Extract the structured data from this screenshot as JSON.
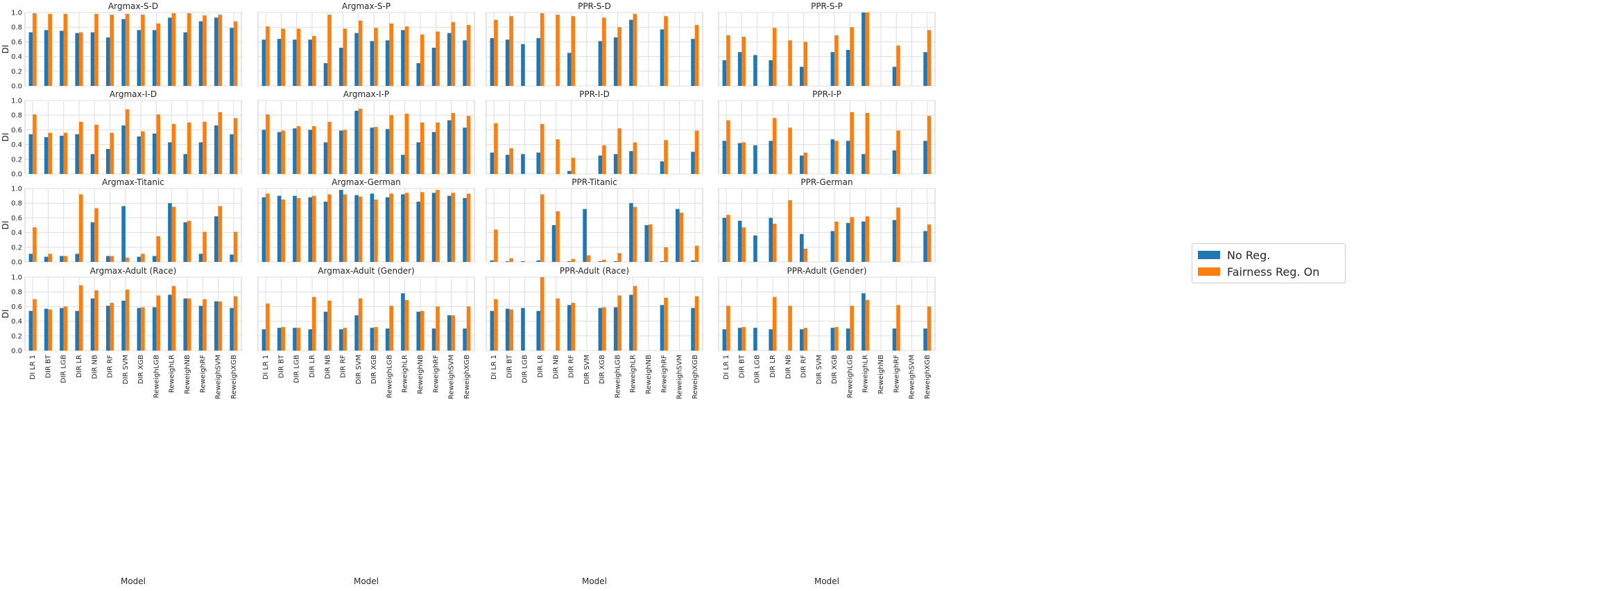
{
  "chart_data": {
    "type": "bar",
    "ylabel": "DI",
    "xlabel": "Model",
    "ylim": [
      0,
      1.0
    ],
    "yticks": [
      "0.0",
      "0.2",
      "0.4",
      "0.6",
      "0.8",
      "1.0"
    ],
    "grid": true,
    "legend_position": "right",
    "categories": [
      "DI LR 1",
      "DIR BT",
      "DIR LGB",
      "DIR LR",
      "DIR NB",
      "DIR RF",
      "DIR SVM",
      "DIR XGB",
      "ReweighLGB",
      "ReweighLR",
      "ReweighNB",
      "ReweighRF",
      "ReweighSVM",
      "ReweighXGB"
    ],
    "series": [
      {
        "name": "No Reg.",
        "color": "#1f77b4"
      },
      {
        "name": "Fairness Reg. On",
        "color": "#ff7f0e"
      }
    ],
    "panels": [
      {
        "title": "Argmax-S-D",
        "no_reg": [
          0.73,
          0.76,
          0.75,
          0.72,
          0.73,
          0.66,
          0.91,
          0.76,
          0.76,
          0.93,
          0.73,
          0.88,
          0.93,
          0.79
        ],
        "fair": [
          0.99,
          0.98,
          0.98,
          0.73,
          0.98,
          0.97,
          0.98,
          0.97,
          0.85,
          0.99,
          0.99,
          0.96,
          0.97,
          0.88
        ]
      },
      {
        "title": "Argmax-S-P",
        "no_reg": [
          0.63,
          0.64,
          0.63,
          0.63,
          0.31,
          0.52,
          0.72,
          0.61,
          0.62,
          0.76,
          0.31,
          0.52,
          0.72,
          0.62
        ],
        "fair": [
          0.81,
          0.78,
          0.78,
          0.68,
          0.97,
          0.78,
          0.89,
          0.79,
          0.85,
          0.81,
          0.7,
          0.74,
          0.87,
          0.83
        ]
      },
      {
        "title": "PPR-S-D",
        "no_reg": [
          0.65,
          0.63,
          0.57,
          0.65,
          0,
          0.45,
          0,
          0.61,
          0.66,
          0.9,
          0,
          0.77,
          0,
          0.64
        ],
        "fair": [
          0.9,
          0.95,
          0,
          0.99,
          0.97,
          0.95,
          0,
          0.93,
          0.8,
          0.98,
          0,
          0.95,
          0,
          0.83
        ]
      },
      {
        "title": "PPR-S-P",
        "no_reg": [
          0.35,
          0.46,
          0.42,
          0.35,
          0,
          0.26,
          0,
          0.46,
          0.49,
          1.0,
          0,
          0.26,
          0,
          0.46
        ],
        "fair": [
          0.69,
          0.67,
          0,
          0.79,
          0.62,
          0.6,
          0,
          0.69,
          0.8,
          1.0,
          0,
          0.55,
          0,
          0.76
        ]
      },
      {
        "title": "Argmax-I-D",
        "no_reg": [
          0.54,
          0.5,
          0.52,
          0.54,
          0.27,
          0.34,
          0.66,
          0.51,
          0.55,
          0.43,
          0.27,
          0.43,
          0.66,
          0.54
        ],
        "fair": [
          0.81,
          0.56,
          0.56,
          0.71,
          0.67,
          0.56,
          0.88,
          0.58,
          0.81,
          0.68,
          0.7,
          0.71,
          0.84,
          0.76
        ]
      },
      {
        "title": "Argmax-I-P",
        "no_reg": [
          0.6,
          0.57,
          0.62,
          0.6,
          0.43,
          0.59,
          0.86,
          0.63,
          0.61,
          0.26,
          0.43,
          0.57,
          0.73,
          0.63
        ],
        "fair": [
          0.81,
          0.59,
          0.65,
          0.65,
          0.71,
          0.6,
          0.89,
          0.64,
          0.8,
          0.82,
          0.7,
          0.7,
          0.83,
          0.79
        ]
      },
      {
        "title": "PPR-I-D",
        "no_reg": [
          0.29,
          0.26,
          0.27,
          0.29,
          0,
          0.04,
          0,
          0.25,
          0.27,
          0.31,
          0,
          0.17,
          0,
          0.3
        ],
        "fair": [
          0.69,
          0.35,
          0,
          0.68,
          0.47,
          0.22,
          0,
          0.39,
          0.62,
          0.43,
          0,
          0.46,
          0,
          0.59
        ]
      },
      {
        "title": "PPR-I-P",
        "no_reg": [
          0.45,
          0.42,
          0.39,
          0.45,
          0,
          0.25,
          0,
          0.47,
          0.45,
          0.27,
          0,
          0.32,
          0,
          0.45
        ],
        "fair": [
          0.73,
          0.43,
          0,
          0.76,
          0.63,
          0.29,
          0,
          0.45,
          0.84,
          0.83,
          0,
          0.59,
          0,
          0.79
        ]
      },
      {
        "title": "Argmax-Titanic",
        "no_reg": [
          0.11,
          0.07,
          0.08,
          0.11,
          0.54,
          0.08,
          0.76,
          0.07,
          0.08,
          0.8,
          0.54,
          0.11,
          0.62,
          0.1
        ],
        "fair": [
          0.47,
          0.11,
          0.08,
          0.92,
          0.73,
          0.08,
          0.06,
          0.11,
          0.35,
          0.75,
          0.56,
          0.41,
          0.76,
          0.41
        ]
      },
      {
        "title": "Argmax-German",
        "no_reg": [
          0.88,
          0.9,
          0.9,
          0.88,
          0.82,
          0.98,
          0.91,
          0.93,
          0.88,
          0.92,
          0.82,
          0.94,
          0.9,
          0.87
        ],
        "fair": [
          0.93,
          0.85,
          0.87,
          0.9,
          0.92,
          0.92,
          0.89,
          0.85,
          0.93,
          0.94,
          0.95,
          0.98,
          0.94,
          0.93
        ]
      },
      {
        "title": "PPR-Titanic",
        "no_reg": [
          0.02,
          0.01,
          0.01,
          0.02,
          0.5,
          0.01,
          0.72,
          0.01,
          0.01,
          0.8,
          0.5,
          0.01,
          0.72,
          0.02
        ],
        "fair": [
          0.44,
          0.05,
          0,
          0.92,
          0.69,
          0.04,
          0.09,
          0.03,
          0.12,
          0.75,
          0.51,
          0.2,
          0.67,
          0.22
        ]
      },
      {
        "title": "PPR-German",
        "no_reg": [
          0.6,
          0.56,
          0.36,
          0.6,
          0,
          0.38,
          0,
          0.42,
          0.53,
          0.55,
          0,
          0.57,
          0,
          0.42
        ],
        "fair": [
          0.64,
          0.47,
          0,
          0.52,
          0.84,
          0.18,
          0,
          0.55,
          0.61,
          0.62,
          0,
          0.74,
          0,
          0.51
        ]
      },
      {
        "title": "Argmax-Adult (Race)",
        "no_reg": [
          0.54,
          0.57,
          0.58,
          0.54,
          0.71,
          0.61,
          0.68,
          0.58,
          0.59,
          0.76,
          0.71,
          0.61,
          0.67,
          0.58
        ],
        "fair": [
          0.7,
          0.56,
          0.6,
          0.89,
          0.82,
          0.65,
          0.83,
          0.59,
          0.75,
          0.88,
          0.71,
          0.7,
          0.67,
          0.74
        ]
      },
      {
        "title": "Argmax-Adult (Gender)",
        "no_reg": [
          0.29,
          0.31,
          0.31,
          0.29,
          0.53,
          0.29,
          0.48,
          0.31,
          0.3,
          0.78,
          0.53,
          0.3,
          0.48,
          0.3
        ],
        "fair": [
          0.64,
          0.32,
          0.31,
          0.73,
          0.68,
          0.31,
          0.71,
          0.32,
          0.61,
          0.69,
          0.54,
          0.6,
          0.48,
          0.6
        ]
      },
      {
        "title": "PPR-Adult (Race)",
        "no_reg": [
          0.54,
          0.57,
          0.58,
          0.54,
          0,
          0.62,
          0,
          0.58,
          0.59,
          0.76,
          0,
          0.62,
          0,
          0.58
        ],
        "fair": [
          0.7,
          0.56,
          0,
          1.0,
          0.71,
          0.65,
          0,
          0.59,
          0.75,
          0.88,
          0,
          0.72,
          0,
          0.74
        ]
      },
      {
        "title": "PPR-Adult (Gender)",
        "no_reg": [
          0.29,
          0.31,
          0.31,
          0.29,
          0,
          0.29,
          0,
          0.31,
          0.3,
          0.78,
          0,
          0.3,
          0,
          0.3
        ],
        "fair": [
          0.61,
          0.32,
          0,
          0.73,
          0.61,
          0.31,
          0,
          0.32,
          0.61,
          0.69,
          0,
          0.62,
          0,
          0.6
        ]
      }
    ]
  }
}
